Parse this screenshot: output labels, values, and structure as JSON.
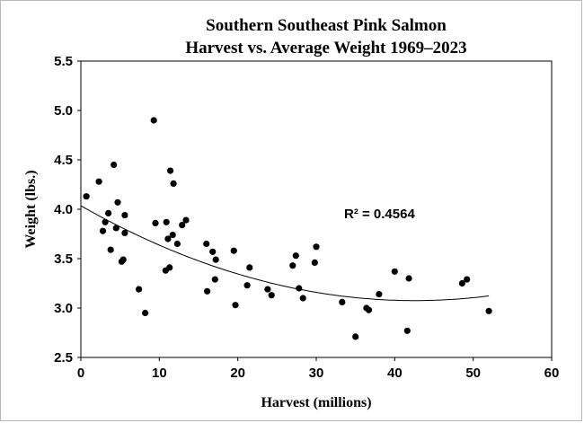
{
  "chart_data": {
    "type": "scatter",
    "title": [
      "Southern Southeast Pink Salmon",
      "Harvest vs. Average Weight 1969–2023"
    ],
    "xlabel": "Harvest (millions)",
    "ylabel": "Weight (lbs.)",
    "xlim": [
      0,
      60
    ],
    "ylim": [
      2.5,
      5.5
    ],
    "x_ticks": [
      0,
      10,
      20,
      30,
      40,
      50,
      60
    ],
    "x_tick_labels": [
      "0",
      "10",
      "20",
      "30",
      "40",
      "50",
      "60"
    ],
    "y_ticks": [
      2.5,
      3.0,
      3.5,
      4.0,
      4.5,
      5.0,
      5.5
    ],
    "y_tick_labels": [
      "2.5",
      "3.0",
      "3.5",
      "4.0",
      "4.5",
      "5.0",
      "5.5"
    ],
    "grid": false,
    "legend": "none",
    "point_color": "#000000",
    "series": [
      {
        "x": [
          0.7,
          2.3,
          2.8,
          3.1,
          3.5,
          3.8,
          4.2,
          4.5,
          4.7,
          5.2,
          5.4,
          5.6,
          5.6,
          7.4,
          8.2,
          9.3,
          9.5,
          10.8,
          10.9,
          11.1,
          11.3,
          11.4,
          11.7,
          11.8,
          12.3,
          12.9,
          13.4,
          16.0,
          16.1,
          16.8,
          17.1,
          17.2,
          19.5,
          19.7,
          21.2,
          21.5,
          23.8,
          24.3,
          27.0,
          27.4,
          27.8,
          28.3,
          29.8,
          30.0,
          33.3,
          35.0,
          36.4,
          36.7,
          38.0,
          40.0,
          41.6,
          41.8,
          48.6,
          49.2,
          52.0
        ],
        "y": [
          4.13,
          4.28,
          3.78,
          3.87,
          3.96,
          3.59,
          4.45,
          3.81,
          4.07,
          3.47,
          3.49,
          3.76,
          3.94,
          3.19,
          2.95,
          4.9,
          3.86,
          3.38,
          3.87,
          3.7,
          3.41,
          4.39,
          3.74,
          4.26,
          3.65,
          3.84,
          3.89,
          3.65,
          3.17,
          3.57,
          3.29,
          3.49,
          3.58,
          3.03,
          3.23,
          3.41,
          3.19,
          3.13,
          3.43,
          3.53,
          3.2,
          3.1,
          3.46,
          3.62,
          3.06,
          2.71,
          3.0,
          2.98,
          3.14,
          3.37,
          2.77,
          3.3,
          3.25,
          3.29,
          2.97
        ]
      }
    ],
    "trendline": {
      "type": "polynomial",
      "order": 2,
      "coefficients": [
        4.035,
        -0.0451,
        0.00053
      ],
      "x_range": [
        0,
        52
      ]
    },
    "annotation": "R² = 0.4564"
  }
}
